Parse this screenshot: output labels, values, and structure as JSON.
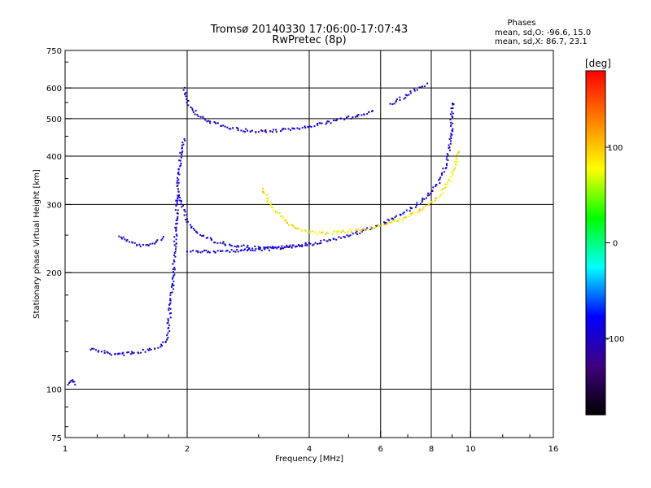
{
  "header": {
    "title_line1": "Tromsø 20140330 17:06:00-17:07:43",
    "title_line2": "RwPretec (8p)",
    "stats_title": "Phases",
    "stats_line1": "mean, sd,O: -96.6, 15.0",
    "stats_line2": "mean, sd,X: 86.7, 23.1"
  },
  "colorbar": {
    "unit": "[deg]",
    "ticks": [
      "100",
      "0",
      "-100"
    ],
    "tick_values": [
      100,
      0,
      -100
    ],
    "range": [
      -180,
      180
    ],
    "colors": [
      "#ff0000",
      "#ff8000",
      "#ffff00",
      "#00ff00",
      "#00ffff",
      "#0000ff",
      "#400080",
      "#000000"
    ]
  },
  "chart_data": {
    "type": "scatter",
    "title": "Tromsø 20140330 17:06:00-17:07:43",
    "subtitle": "RwPretec (8p)",
    "xlabel": "Frequency [MHz]",
    "ylabel": "Stationary phase Virtual Height [km]",
    "x_scale": "log",
    "y_scale": "log",
    "xlim": [
      1,
      16
    ],
    "ylim": [
      75,
      750
    ],
    "x_ticks": [
      1,
      2,
      4,
      6,
      8,
      10,
      16
    ],
    "x_tick_labels": [
      "1",
      "2",
      "4",
      "6",
      "8",
      "10",
      "16"
    ],
    "y_ticks": [
      75,
      100,
      200,
      300,
      400,
      500,
      600,
      750
    ],
    "y_tick_labels": [
      "75",
      "100",
      "200",
      "300",
      "400",
      "500",
      "600",
      "750"
    ],
    "grid_x": [
      2,
      4,
      6,
      8,
      10
    ],
    "grid_y": [
      100,
      200,
      300,
      400,
      500,
      600
    ],
    "series": [
      {
        "mode": "O",
        "mean_phase_deg": -96.6,
        "traces": [
          {
            "x": [
              1.02,
              1.03,
              1.04,
              1.05
            ],
            "y": [
              104,
              106,
              105,
              103
            ]
          },
          {
            "x": [
              1.15,
              1.2,
              1.25,
              1.3,
              1.35,
              1.4,
              1.45,
              1.5,
              1.55,
              1.6,
              1.65,
              1.7,
              1.75,
              1.78
            ],
            "y": [
              128,
              126,
              125,
              124,
              124,
              124,
              125,
              125,
              126,
              127,
              128,
              130,
              133,
              136
            ]
          },
          {
            "x": [
              1.78,
              1.79,
              1.8,
              1.81,
              1.82,
              1.83,
              1.84,
              1.85,
              1.86
            ],
            "y": [
              136,
              145,
              155,
              165,
              175,
              185,
              200,
              220,
              240
            ]
          },
          {
            "x": [
              1.86,
              1.87,
              1.88,
              1.89,
              1.9,
              1.91,
              1.93,
              1.96
            ],
            "y": [
              240,
              270,
              300,
              330,
              360,
              390,
              420,
              450
            ]
          },
          {
            "x": [
              1.96,
              1.98,
              2.0,
              2.05,
              2.1,
              2.2,
              2.35,
              2.5,
              2.7,
              2.9,
              3.1,
              3.3,
              3.5,
              3.7,
              3.9,
              4.1,
              4.4,
              4.7,
              5.0,
              5.4,
              5.8
            ],
            "y": [
              600,
              570,
              550,
              530,
              515,
              500,
              487,
              477,
              470,
              466,
              466,
              467,
              470,
              474,
              478,
              483,
              490,
              497,
              505,
              516,
              528
            ]
          },
          {
            "x": [
              6.3,
              6.6,
              7.0,
              7.4,
              7.8
            ],
            "y": [
              545,
              560,
              580,
              600,
              620
            ]
          },
          {
            "x": [
              1.9,
              1.95,
              2.0,
              2.1,
              2.3,
              2.6,
              3.0,
              3.5,
              4.0,
              4.5,
              5.0,
              5.5,
              6.0,
              6.5,
              7.0,
              7.5,
              8.0,
              8.4,
              8.7,
              8.9,
              9.0
            ],
            "y": [
              320,
              290,
              270,
              255,
              243,
              236,
              233,
              234,
              238,
              244,
              251,
              259,
              268,
              279,
              292,
              306,
              325,
              350,
              390,
              450,
              560
            ]
          },
          {
            "x": [
              2.0,
              2.3,
              2.6,
              3.0,
              3.3,
              3.6,
              4.0
            ],
            "y": [
              228,
              228,
              229,
              230,
              232,
              235,
              239
            ]
          },
          {
            "x": [
              1.35,
              1.45,
              1.55,
              1.65,
              1.75
            ],
            "y": [
              250,
              240,
              236,
              240,
              250
            ]
          }
        ]
      },
      {
        "mode": "X",
        "mean_phase_deg": 86.7,
        "traces": [
          {
            "x": [
              3.05,
              3.2,
              3.4,
              3.6,
              3.8,
              4.0,
              4.3,
              4.6,
              5.0,
              5.5,
              6.0,
              6.5,
              7.0,
              7.5,
              8.0,
              8.4,
              8.8,
              9.1,
              9.3
            ],
            "y": [
              330,
              300,
              280,
              265,
              258,
              255,
              254,
              255,
              257,
              261,
              266,
              273,
              281,
              291,
              304,
              320,
              345,
              375,
              420
            ]
          }
        ]
      }
    ]
  }
}
